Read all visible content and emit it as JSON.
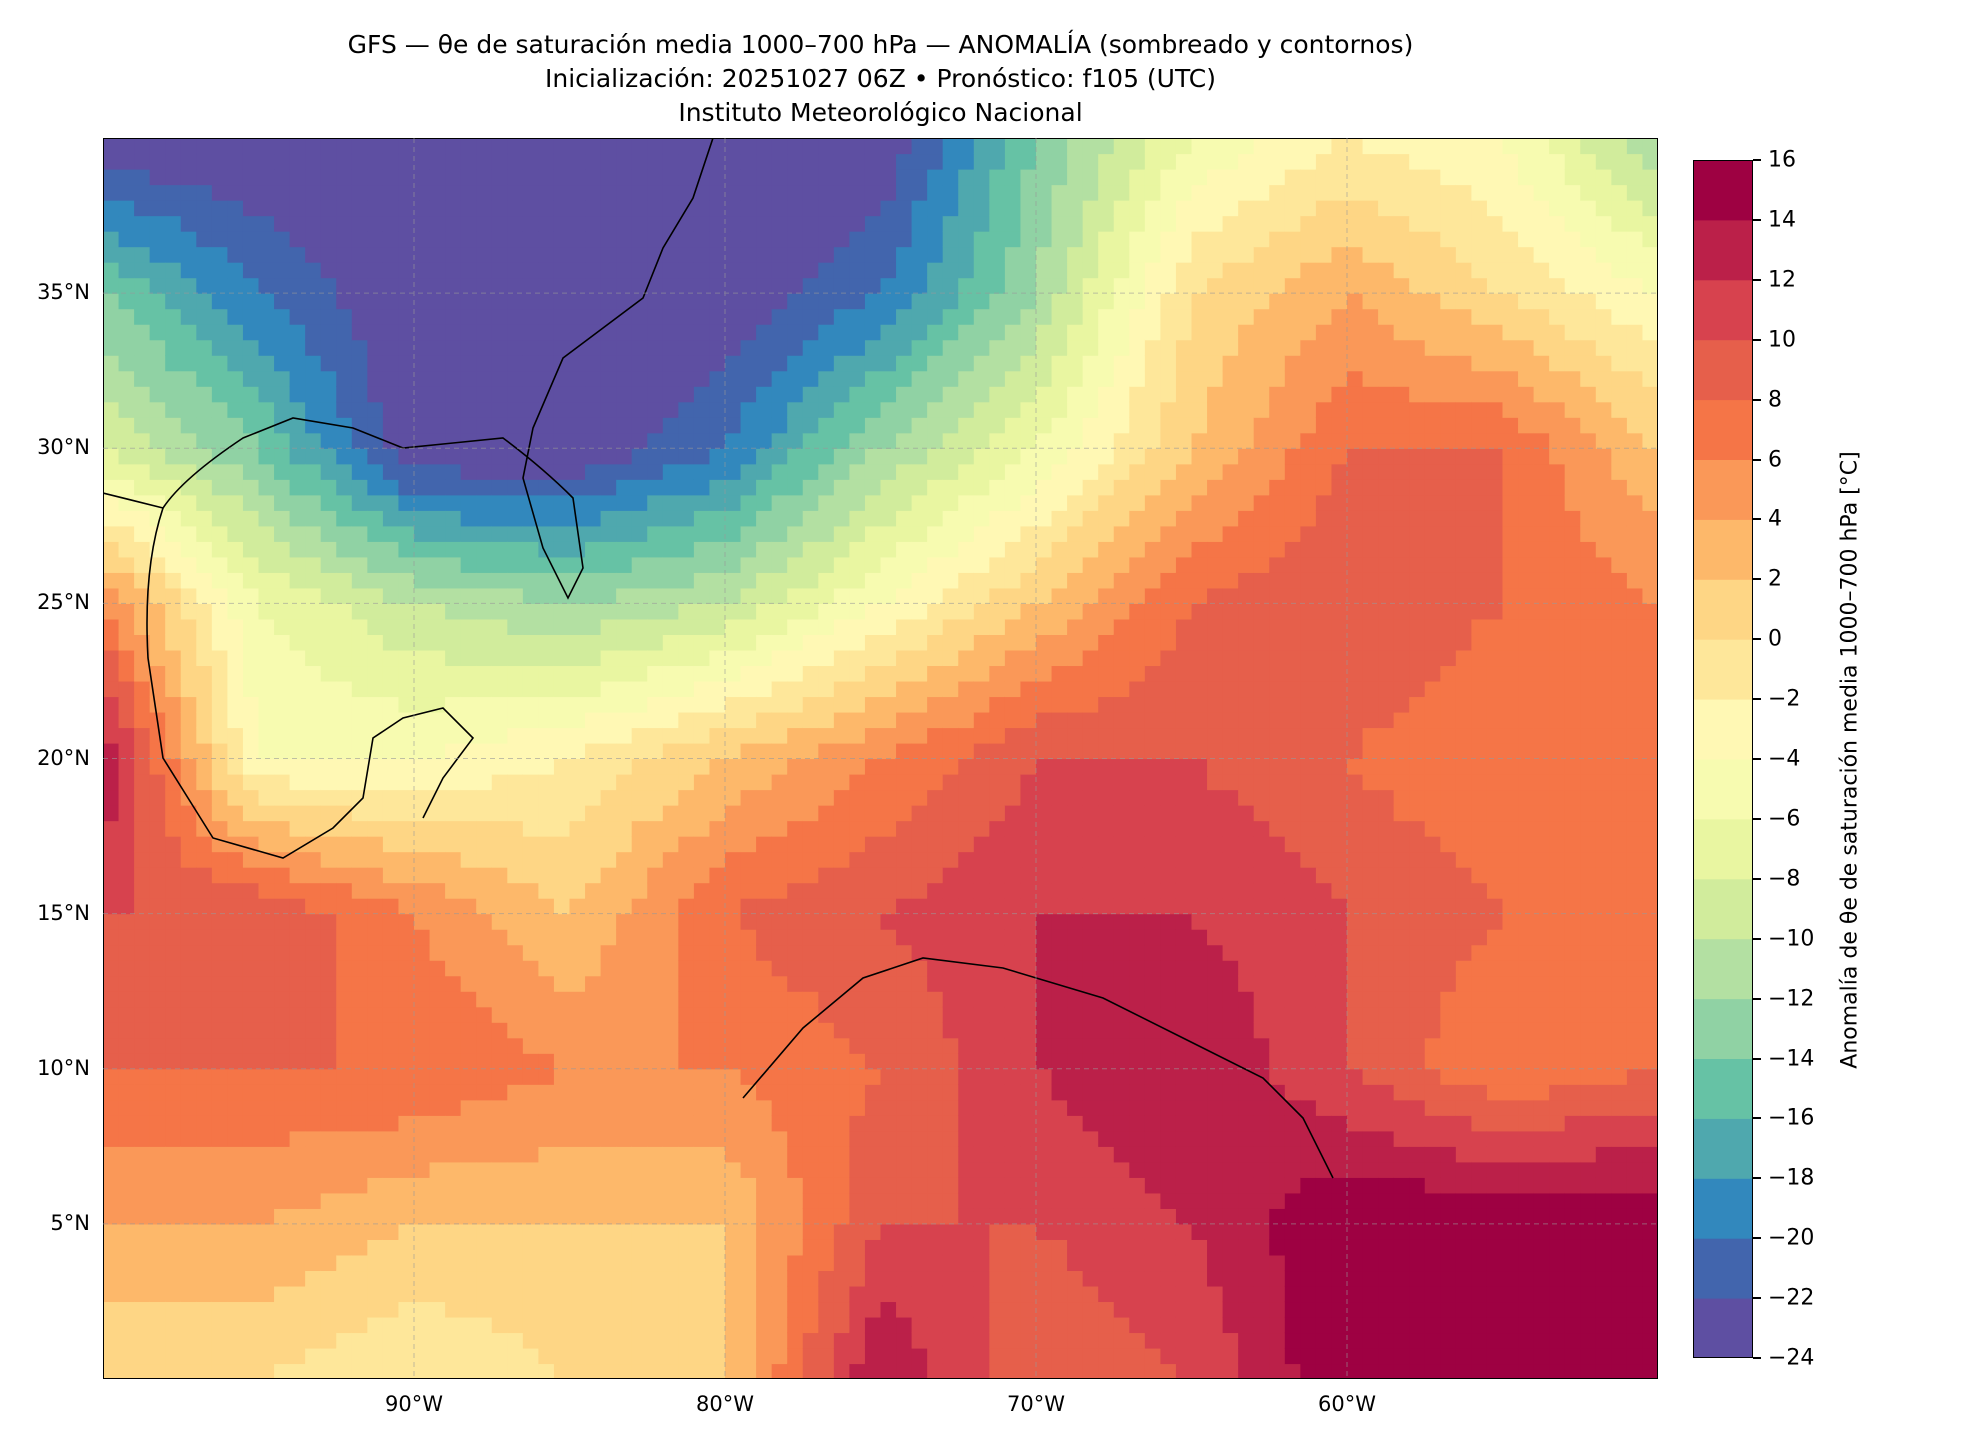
{
  "title": {
    "line1": "GFS — θe de saturación media 1000–700 hPa — ANOMALÍA (sombreado y contornos)",
    "line2": "Inicialización: 20251027 06Z   •   Pronóstico: f105 (UTC)",
    "line3": "Instituto Meteorológico Nacional"
  },
  "chart_data": {
    "type": "heatmap",
    "title": "GFS — θe de saturación media 1000–700 hPa — ANOMALÍA (sombreado y contornos)",
    "xlim": [
      -100,
      -50
    ],
    "ylim": [
      0,
      40
    ],
    "grid": true,
    "x_ticks": [
      -90,
      -80,
      -70,
      -60
    ],
    "x_tick_labels": [
      "90°W",
      "80°W",
      "70°W",
      "60°W"
    ],
    "y_ticks": [
      5,
      10,
      15,
      20,
      25,
      30,
      35
    ],
    "y_tick_labels": [
      "5°N",
      "10°N",
      "15°N",
      "20°N",
      "25°N",
      "30°N",
      "35°N"
    ],
    "grid_lons": [
      -100,
      -95,
      -90,
      -85,
      -80,
      -75,
      -70,
      -65,
      -60,
      -55,
      -50
    ],
    "grid_lats": [
      40,
      35,
      30,
      25,
      20,
      15,
      10,
      5,
      0
    ],
    "values": [
      [
        -24,
        -24,
        -24,
        -24,
        -24,
        -24,
        -14,
        -6,
        -2,
        -4,
        -12
      ],
      [
        -14,
        -20,
        -24,
        -24,
        -24,
        -20,
        -12,
        0,
        4,
        0,
        -4
      ],
      [
        -8,
        -14,
        -24,
        -24,
        -20,
        -12,
        -6,
        2,
        8,
        8,
        2
      ],
      [
        6,
        -6,
        -10,
        -12,
        -10,
        -4,
        2,
        8,
        10,
        8,
        6
      ],
      [
        14,
        -4,
        -4,
        -2,
        2,
        6,
        10,
        10,
        8,
        6,
        6
      ],
      [
        10,
        10,
        6,
        2,
        8,
        10,
        12,
        12,
        10,
        8,
        8
      ],
      [
        8,
        8,
        8,
        6,
        6,
        8,
        12,
        14,
        10,
        6,
        8
      ],
      [
        4,
        4,
        2,
        2,
        2,
        10,
        10,
        12,
        16,
        16,
        16
      ],
      [
        0,
        0,
        -2,
        0,
        2,
        14,
        8,
        10,
        16,
        16,
        16
      ]
    ],
    "colorbar": {
      "label": "Anomalía de θe de saturación media 1000–700 hPa [°C]",
      "levels": [
        -24,
        -22,
        -20,
        -18,
        -16,
        -14,
        -12,
        -10,
        -8,
        -6,
        -4,
        -2,
        0,
        2,
        4,
        6,
        8,
        10,
        12,
        14,
        16
      ],
      "tick_labels": [
        "−24",
        "−22",
        "−20",
        "−18",
        "−16",
        "−14",
        "−12",
        "−10",
        "−8",
        "−6",
        "−4",
        "−2",
        "0",
        "2",
        "4",
        "6",
        "8",
        "10",
        "12",
        "14",
        "16"
      ],
      "colors": [
        "#5e4fa2",
        "#4265ad",
        "#3288bd",
        "#4fa8ae",
        "#66c2a5",
        "#90d2a4",
        "#b3e0a2",
        "#d1ec9c",
        "#e9f6a1",
        "#f7fbb0",
        "#fff8b4",
        "#fee79a",
        "#fed685",
        "#fdb86a",
        "#fa9858",
        "#f57547",
        "#e65f4b",
        "#d7424e",
        "#bb2049",
        "#9e0142"
      ]
    }
  }
}
